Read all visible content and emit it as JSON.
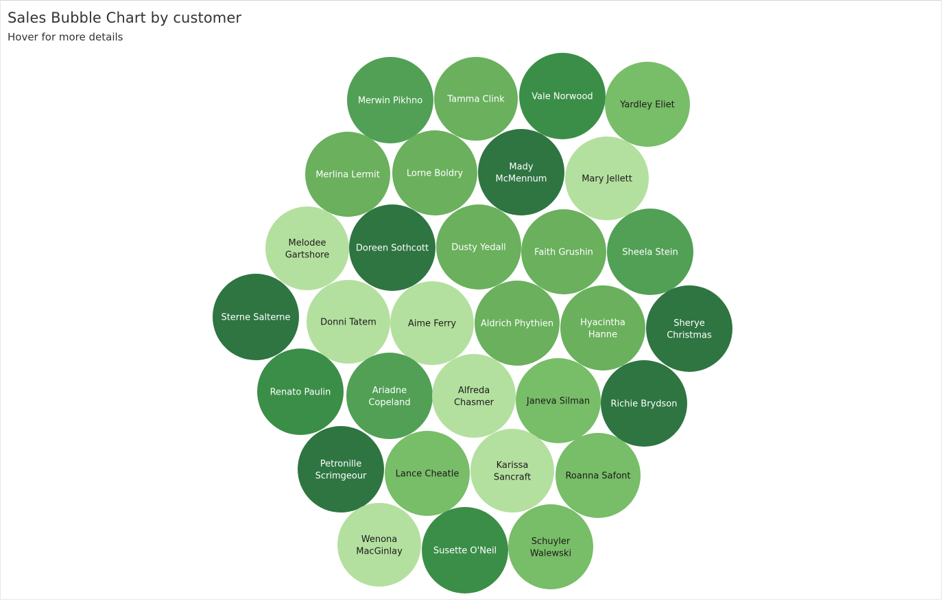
{
  "title": "Sales Bubble Chart by customer",
  "subtitle": "Hover for more details",
  "colors": {
    "level_1": "#b4e09f",
    "level_2": "#78bd68",
    "level_3": "#6ab05d",
    "level_4": "#51a055",
    "level_5": "#3b8e47",
    "level_6": "#2e7541",
    "text_dark": "#1b1b1b",
    "text_light": "#ffffff"
  },
  "chart_data": {
    "type": "bubble",
    "title": "Sales Bubble Chart by customer",
    "subtitle": "Hover for more details",
    "color_scale": "light green = lower sales, dark green = higher sales",
    "customers": [
      {
        "name": "Merwin Pikhno",
        "lines": [
          "Merwin Pikhno"
        ],
        "color_level": 4
      },
      {
        "name": "Tamma Clink",
        "lines": [
          "Tamma Clink"
        ],
        "color_level": 3
      },
      {
        "name": "Vale Norwood",
        "lines": [
          "Vale Norwood"
        ],
        "color_level": 5
      },
      {
        "name": "Yardley Eliet",
        "lines": [
          "Yardley Eliet"
        ],
        "color_level": 2
      },
      {
        "name": "Merlina Lermit",
        "lines": [
          "Merlina Lermit"
        ],
        "color_level": 3
      },
      {
        "name": "Lorne Boldry",
        "lines": [
          "Lorne Boldry"
        ],
        "color_level": 3
      },
      {
        "name": "Mady McMennum",
        "lines": [
          "Mady",
          "McMennum"
        ],
        "color_level": 6
      },
      {
        "name": "Mary Jellett",
        "lines": [
          "Mary Jellett"
        ],
        "color_level": 1
      },
      {
        "name": "Melodee Gartshore",
        "lines": [
          "Melodee",
          "Gartshore"
        ],
        "color_level": 1
      },
      {
        "name": "Doreen Sothcott",
        "lines": [
          "Doreen Sothcott"
        ],
        "color_level": 6
      },
      {
        "name": "Dusty Yedall",
        "lines": [
          "Dusty Yedall"
        ],
        "color_level": 3
      },
      {
        "name": "Faith Grushin",
        "lines": [
          "Faith Grushin"
        ],
        "color_level": 3
      },
      {
        "name": "Sheela Stein",
        "lines": [
          "Sheela Stein"
        ],
        "color_level": 4
      },
      {
        "name": "Sterne Salterne",
        "lines": [
          "Sterne Salterne"
        ],
        "color_level": 6
      },
      {
        "name": "Donni Tatem",
        "lines": [
          "Donni Tatem"
        ],
        "color_level": 1
      },
      {
        "name": "Aime Ferry",
        "lines": [
          "Aime Ferry"
        ],
        "color_level": 1
      },
      {
        "name": "Aldrich Phythien",
        "lines": [
          "Aldrich Phythien"
        ],
        "color_level": 3
      },
      {
        "name": "Hyacintha Hanne",
        "lines": [
          "Hyacintha",
          "Hanne"
        ],
        "color_level": 3
      },
      {
        "name": "Sherye Christmas",
        "lines": [
          "Sherye",
          "Christmas"
        ],
        "color_level": 6
      },
      {
        "name": "Renato Paulin",
        "lines": [
          "Renato Paulin"
        ],
        "color_level": 5
      },
      {
        "name": "Ariadne Copeland",
        "lines": [
          "Ariadne",
          "Copeland"
        ],
        "color_level": 4
      },
      {
        "name": "Alfreda Chasmer",
        "lines": [
          "Alfreda",
          "Chasmer"
        ],
        "color_level": 1
      },
      {
        "name": "Janeva Silman",
        "lines": [
          "Janeva Silman"
        ],
        "color_level": 2
      },
      {
        "name": "Richie Brydson",
        "lines": [
          "Richie Brydson"
        ],
        "color_level": 6
      },
      {
        "name": "Petronille Scrimgeour",
        "lines": [
          "Petronille",
          "Scrimgeour"
        ],
        "color_level": 6
      },
      {
        "name": "Lance Cheatle",
        "lines": [
          "Lance Cheatle"
        ],
        "color_level": 2
      },
      {
        "name": "Karissa Sancraft",
        "lines": [
          "Karissa",
          "Sancraft"
        ],
        "color_level": 1
      },
      {
        "name": "Roanna Safont",
        "lines": [
          "Roanna Safont"
        ],
        "color_level": 2
      },
      {
        "name": "Wenona MacGinlay",
        "lines": [
          "Wenona",
          "MacGinlay"
        ],
        "color_level": 1
      },
      {
        "name": "Susette O'Neil",
        "lines": [
          "Susette O'Neil"
        ],
        "color_level": 5
      },
      {
        "name": "Schuyler Walewski",
        "lines": [
          "Schuyler",
          "Walewski"
        ],
        "color_level": 2
      }
    ]
  }
}
